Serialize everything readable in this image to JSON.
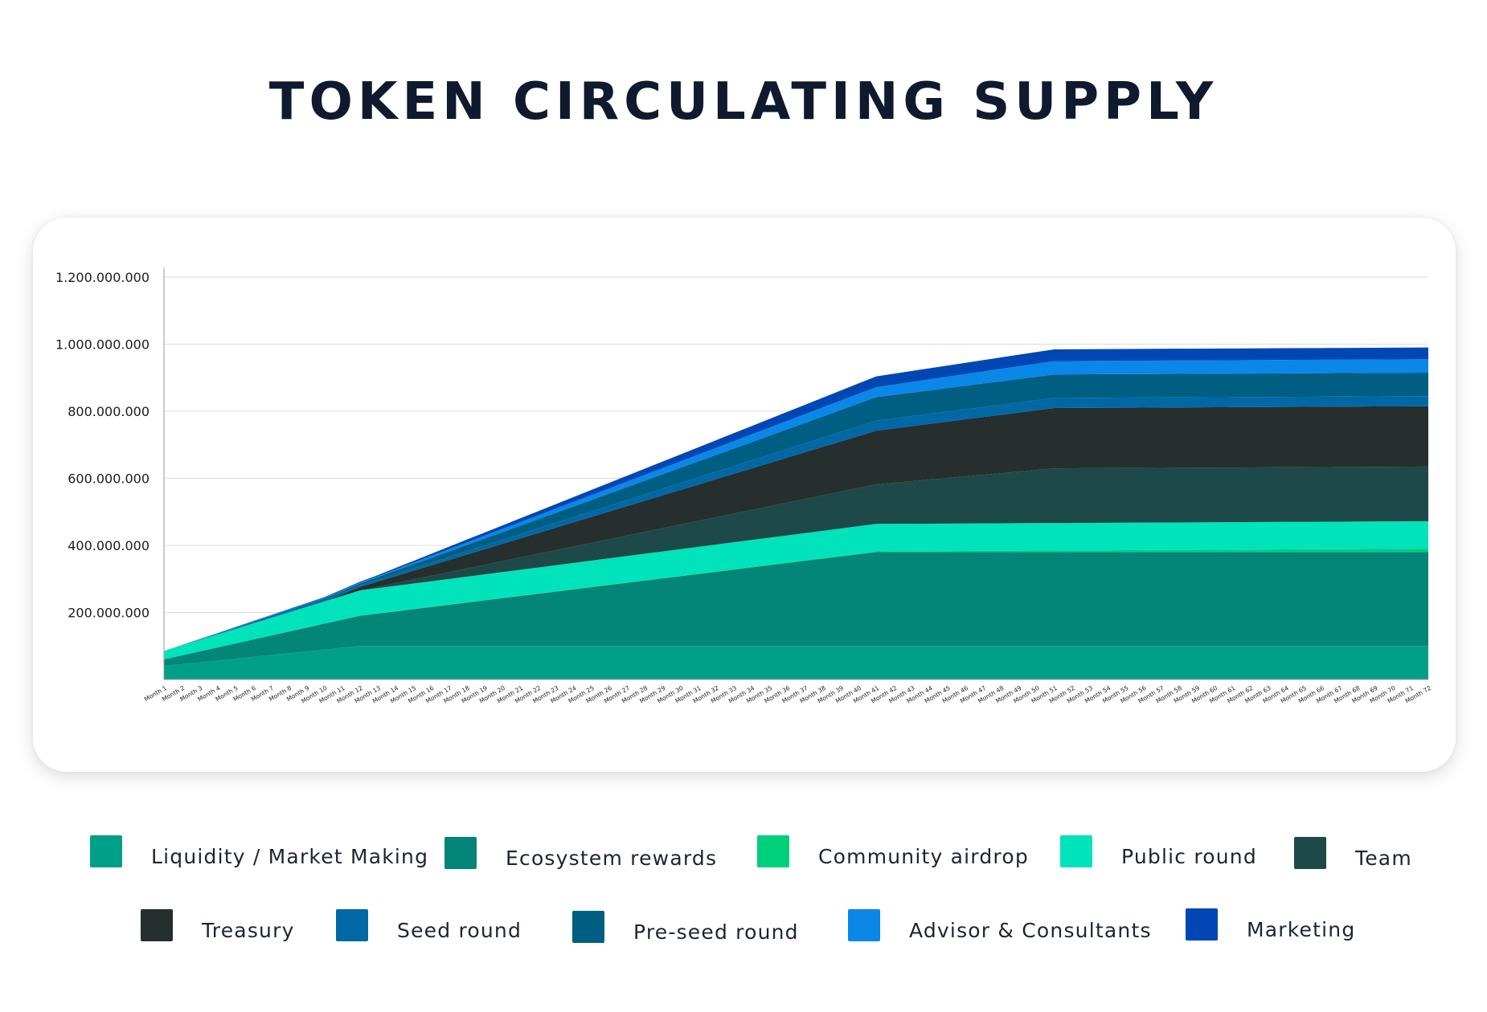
{
  "chart_data": {
    "type": "area",
    "stacked": true,
    "title": "TOKEN CIRCULATING SUPPLY",
    "xlabel": "",
    "ylabel": "",
    "ylim": [
      0,
      1200000000
    ],
    "yticks": [
      "200.000.000",
      "400.000.000",
      "600.000.000",
      "800.000.000",
      "1.000.000.000",
      "1.200.000.000"
    ],
    "ytick_values": [
      200000000,
      400000000,
      600000000,
      800000000,
      1000000000,
      1200000000
    ],
    "grid": true,
    "legend_position": "bottom",
    "categories": [
      "Month 1",
      "Month 2",
      "Month 3",
      "Month 4",
      "Month 5",
      "Month 6",
      "Month 7",
      "Month 8",
      "Month 9",
      "Month 10",
      "Month 11",
      "Month 12",
      "Month 13",
      "Month 14",
      "Month 15",
      "Month 16",
      "Month 17",
      "Month 18",
      "Month 19",
      "Month 20",
      "Month 21",
      "Month 22",
      "Month 23",
      "Month 24",
      "Month 25",
      "Month 26",
      "Month 27",
      "Month 28",
      "Month 29",
      "Month 30",
      "Month 31",
      "Month 32",
      "Month 33",
      "Month 34",
      "Month 35",
      "Month 36",
      "Month 37",
      "Month 38",
      "Month 39",
      "Month 40",
      "Month 41",
      "Month 42",
      "Month 43",
      "Month 44",
      "Month 45",
      "Month 46",
      "Month 47",
      "Month 48",
      "Month 49",
      "Month 50",
      "Month 51",
      "Month 52",
      "Month 53",
      "Month 54",
      "Month 55",
      "Month 56",
      "Month 57",
      "Month 58",
      "Month 59",
      "Month 60",
      "Month 61",
      "Month 62",
      "Month 63",
      "Month 64",
      "Month 65",
      "Month 66",
      "Month 67",
      "Month 68",
      "Month 69",
      "Month 70",
      "Month 71",
      "Month 72"
    ],
    "series": [
      {
        "name": "Liquidity / Market Making",
        "color": "#00a088",
        "start": 40000000,
        "points": [
          [
            1,
            40000000
          ],
          [
            12,
            100000000
          ],
          [
            72,
            100000000
          ]
        ]
      },
      {
        "name": "Ecosystem rewards",
        "color": "#038578",
        "start": 20000000,
        "points": [
          [
            1,
            20000000
          ],
          [
            12,
            90000000
          ],
          [
            41,
            280000000
          ],
          [
            72,
            280000000
          ]
        ]
      },
      {
        "name": "Community airdrop",
        "color": "#00cf7c",
        "start": 0,
        "points": [
          [
            1,
            0
          ],
          [
            41,
            2000000
          ],
          [
            72,
            10000000
          ]
        ]
      },
      {
        "name": "Public round",
        "color": "#00e3bb",
        "start": 25000000,
        "points": [
          [
            1,
            25000000
          ],
          [
            12,
            75000000
          ],
          [
            41,
            82000000
          ],
          [
            72,
            82000000
          ]
        ]
      },
      {
        "name": "Team",
        "color": "#1d4a48",
        "start": 0,
        "points": [
          [
            1,
            0
          ],
          [
            12,
            0
          ],
          [
            41,
            118000000
          ],
          [
            51,
            163000000
          ],
          [
            72,
            163000000
          ]
        ]
      },
      {
        "name": "Treasury",
        "color": "#262e2e",
        "start": 0,
        "points": [
          [
            1,
            0
          ],
          [
            10,
            0
          ],
          [
            41,
            160000000
          ],
          [
            51,
            180000000
          ],
          [
            72,
            180000000
          ]
        ]
      },
      {
        "name": "Seed round",
        "color": "#0068a5",
        "start": 0,
        "points": [
          [
            1,
            0
          ],
          [
            12,
            5000000
          ],
          [
            41,
            30000000
          ],
          [
            72,
            30000000
          ]
        ]
      },
      {
        "name": "Pre-seed round",
        "color": "#005e82",
        "start": 0,
        "points": [
          [
            1,
            0
          ],
          [
            12,
            5000000
          ],
          [
            41,
            70000000
          ],
          [
            51,
            70000000
          ],
          [
            72,
            70000000
          ]
        ]
      },
      {
        "name": "Advisor & Consultants",
        "color": "#0a87e8",
        "start": 0,
        "points": [
          [
            1,
            0
          ],
          [
            13,
            3000000
          ],
          [
            41,
            30000000
          ],
          [
            51,
            40000000
          ],
          [
            72,
            40000000
          ]
        ]
      },
      {
        "name": "Marketing",
        "color": "#0047b5",
        "start": 0,
        "points": [
          [
            1,
            0
          ],
          [
            13,
            3000000
          ],
          [
            41,
            32000000
          ],
          [
            51,
            35000000
          ],
          [
            72,
            35000000
          ]
        ]
      }
    ]
  }
}
